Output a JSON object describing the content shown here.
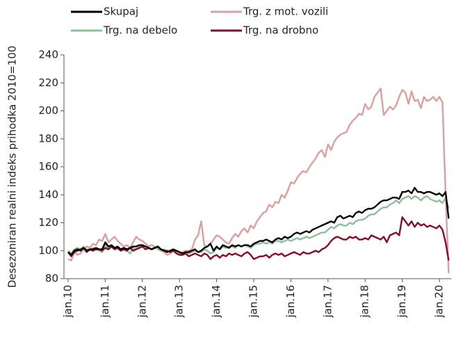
{
  "chart_data": {
    "type": "line",
    "y_label": "Desezoniran realni indeks prihodka 2010=100",
    "categories": [
      "jan.10",
      null,
      null,
      null,
      null,
      null,
      null,
      null,
      null,
      null,
      null,
      null,
      "jan.11",
      null,
      null,
      null,
      null,
      null,
      null,
      null,
      null,
      null,
      null,
      null,
      "jan.12",
      null,
      null,
      null,
      null,
      null,
      null,
      null,
      null,
      null,
      null,
      null,
      "jan.13",
      null,
      null,
      null,
      null,
      null,
      null,
      null,
      null,
      null,
      null,
      null,
      "jan.14",
      null,
      null,
      null,
      null,
      null,
      null,
      null,
      null,
      null,
      null,
      null,
      "jan.15",
      null,
      null,
      null,
      null,
      null,
      null,
      null,
      null,
      null,
      null,
      null,
      "jan.16",
      null,
      null,
      null,
      null,
      null,
      null,
      null,
      null,
      null,
      null,
      null,
      "jan.17",
      null,
      null,
      null,
      null,
      null,
      null,
      null,
      null,
      null,
      null,
      null,
      "jan.18",
      null,
      null,
      null,
      null,
      null,
      null,
      null,
      null,
      null,
      null,
      null,
      "jan.19",
      null,
      null,
      null,
      null,
      null,
      null,
      null,
      null,
      null,
      null,
      null,
      "jan.20",
      null,
      null,
      null
    ],
    "series": [
      {
        "name": "Skupaj",
        "color": "#000000",
        "values": [
          99,
          97,
          100,
          101,
          100,
          102,
          100,
          101,
          101,
          102,
          101,
          101,
          106,
          103,
          104,
          102,
          103,
          101,
          102,
          101,
          102,
          103,
          103,
          104,
          104,
          103,
          102,
          101,
          102,
          103,
          101,
          100,
          99,
          100,
          101,
          100,
          99,
          98,
          99,
          99,
          100,
          101,
          99,
          100,
          102,
          103,
          105,
          100,
          103,
          101,
          104,
          103,
          102,
          104,
          103,
          104,
          103,
          104,
          104,
          103,
          105,
          106,
          107,
          107,
          108,
          107,
          106,
          108,
          109,
          108,
          110,
          109,
          110,
          112,
          113,
          112,
          113,
          114,
          113,
          115,
          116,
          117,
          118,
          119,
          120,
          121,
          120,
          124,
          125,
          123,
          124,
          125,
          124,
          127,
          128,
          127,
          129,
          130,
          130,
          131,
          133,
          135,
          136,
          136,
          137,
          138,
          138,
          137,
          142,
          142,
          143,
          141,
          145,
          142,
          142,
          141,
          142,
          142,
          141,
          140,
          141,
          139,
          142,
          123
        ]
      },
      {
        "name": "Trg. z mot. vozili",
        "color": "#de9e9e",
        "values": [
          94,
          93,
          99,
          97,
          98,
          101,
          103,
          102,
          105,
          104,
          108,
          107,
          112,
          106,
          108,
          110,
          107,
          105,
          103,
          104,
          102,
          106,
          110,
          108,
          107,
          105,
          103,
          104,
          103,
          101,
          100,
          99,
          97,
          98,
          100,
          99,
          98,
          99,
          100,
          100,
          101,
          108,
          111,
          121,
          104,
          103,
          105,
          108,
          111,
          110,
          108,
          106,
          105,
          109,
          112,
          110,
          114,
          116,
          113,
          118,
          116,
          121,
          124,
          127,
          128,
          133,
          131,
          135,
          134,
          140,
          138,
          143,
          149,
          148,
          152,
          155,
          157,
          156,
          160,
          163,
          166,
          170,
          172,
          167,
          176,
          172,
          178,
          181,
          183,
          184,
          185,
          190,
          193,
          195,
          198,
          197,
          205,
          201,
          203,
          210,
          213,
          216,
          197,
          200,
          203,
          201,
          204,
          210,
          215,
          213,
          205,
          214,
          207,
          208,
          202,
          210,
          207,
          208,
          210,
          207,
          210,
          206,
          140,
          84
        ]
      },
      {
        "name": "Trg. na debelo",
        "color": "#8dbf99",
        "values": [
          100,
          98,
          101,
          102,
          101,
          103,
          101,
          100,
          102,
          101,
          100,
          99,
          104,
          102,
          103,
          101,
          102,
          100,
          101,
          100,
          98,
          102,
          101,
          103,
          103,
          103,
          102,
          101,
          103,
          102,
          100,
          101,
          99,
          100,
          101,
          99,
          98,
          98,
          99,
          98,
          99,
          100,
          99,
          99,
          101,
          100,
          98,
          99,
          102,
          101,
          103,
          102,
          103,
          103,
          102,
          104,
          103,
          104,
          103,
          102,
          104,
          105,
          105,
          106,
          105,
          106,
          105,
          107,
          107,
          106,
          107,
          108,
          107,
          108,
          109,
          108,
          109,
          110,
          109,
          110,
          111,
          112,
          113,
          113,
          115,
          117,
          116,
          118,
          119,
          118,
          118,
          120,
          119,
          121,
          122,
          122,
          123,
          125,
          126,
          126,
          128,
          130,
          131,
          131,
          133,
          134,
          136,
          134,
          137,
          138,
          139,
          137,
          139,
          138,
          136,
          138,
          139,
          137,
          136,
          135,
          136,
          134,
          138,
          130
        ]
      },
      {
        "name": "Trg. na drobno",
        "color": "#8b0a2c",
        "values": [
          99,
          96,
          99,
          100,
          101,
          102,
          99,
          101,
          100,
          101,
          101,
          100,
          102,
          101,
          103,
          101,
          102,
          100,
          101,
          100,
          102,
          100,
          101,
          102,
          103,
          101,
          102,
          101,
          102,
          103,
          101,
          100,
          100,
          99,
          100,
          98,
          97,
          97,
          98,
          96,
          97,
          98,
          97,
          96,
          98,
          97,
          94,
          96,
          97,
          95,
          97,
          96,
          98,
          97,
          98,
          97,
          96,
          98,
          99,
          97,
          94,
          95,
          96,
          96,
          97,
          95,
          97,
          98,
          97,
          98,
          96,
          97,
          98,
          99,
          98,
          97,
          99,
          98,
          98,
          99,
          100,
          99,
          101,
          102,
          104,
          107,
          109,
          110,
          109,
          108,
          108,
          110,
          109,
          110,
          108,
          108,
          109,
          108,
          111,
          110,
          109,
          108,
          110,
          106,
          111,
          112,
          113,
          111,
          124,
          121,
          118,
          121,
          117,
          120,
          118,
          119,
          117,
          118,
          117,
          116,
          118,
          115,
          106,
          93
        ]
      }
    ],
    "ylim": [
      80,
      240
    ],
    "yticks": [
      80,
      100,
      120,
      140,
      160,
      180,
      200,
      220,
      240
    ]
  }
}
